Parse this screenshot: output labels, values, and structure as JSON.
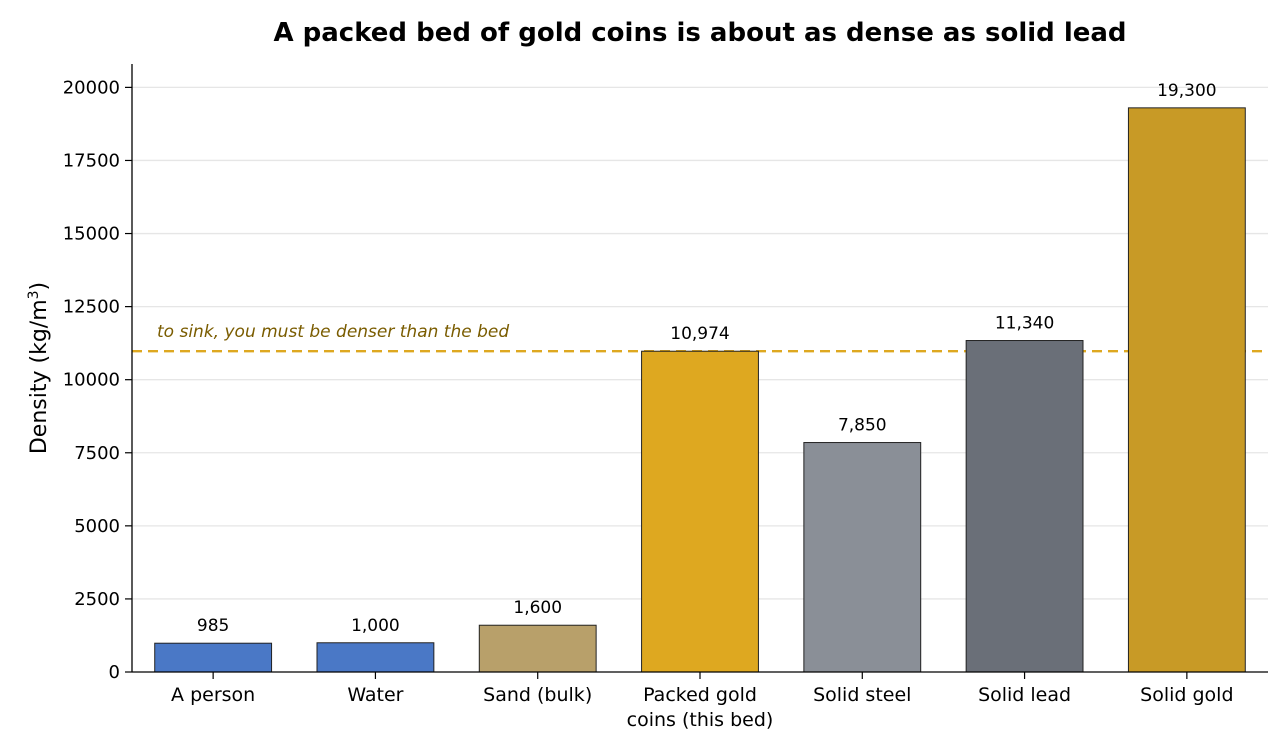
{
  "chart_data": {
    "type": "bar",
    "title": "A packed bed of gold coins is about as dense as solid lead",
    "xlabel": "",
    "ylabel": "Density  (kg/m",
    "ylabel_sup": "3",
    "ylabel_close": ")",
    "ylim": [
      0,
      20800
    ],
    "yticks": [
      0,
      2500,
      5000,
      7500,
      10000,
      12500,
      15000,
      17500,
      20000
    ],
    "grid": "y",
    "categories": [
      [
        "A person"
      ],
      [
        "Water"
      ],
      [
        "Sand (bulk)"
      ],
      [
        "Packed gold",
        "coins (this bed)"
      ],
      [
        "Solid steel"
      ],
      [
        "Solid lead"
      ],
      [
        "Solid gold"
      ]
    ],
    "values": [
      985,
      1000,
      1600,
      10974,
      7850,
      11340,
      19300
    ],
    "value_labels": [
      "985",
      "1,000",
      "1,600",
      "10,974",
      "7,850",
      "11,340",
      "19,300"
    ],
    "colors": [
      "#4a78c6",
      "#4a78c6",
      "#b8a06a",
      "#dea820",
      "#8a8f97",
      "#6a6f78",
      "#c89a26"
    ],
    "reference_line": {
      "value": 10974,
      "label": "to sink, you must be denser than the bed",
      "color": "#dea820",
      "label_color": "#7a5c00"
    }
  }
}
